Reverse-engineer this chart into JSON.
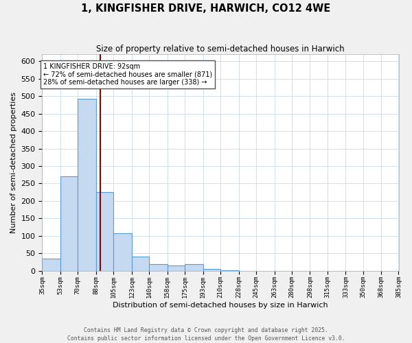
{
  "title": "1, KINGFISHER DRIVE, HARWICH, CO12 4WE",
  "subtitle": "Size of property relative to semi-detached houses in Harwich",
  "xlabel": "Distribution of semi-detached houses by size in Harwich",
  "ylabel": "Number of semi-detached properties",
  "bin_labels": [
    "35sqm",
    "53sqm",
    "70sqm",
    "88sqm",
    "105sqm",
    "123sqm",
    "140sqm",
    "158sqm",
    "175sqm",
    "193sqm",
    "210sqm",
    "228sqm",
    "245sqm",
    "263sqm",
    "280sqm",
    "298sqm",
    "315sqm",
    "333sqm",
    "350sqm",
    "368sqm",
    "385sqm"
  ],
  "bin_edges": [
    35,
    53,
    70,
    88,
    105,
    123,
    140,
    158,
    175,
    193,
    210,
    228,
    245,
    263,
    280,
    298,
    315,
    333,
    350,
    368,
    385
  ],
  "bar_values": [
    35,
    270,
    493,
    225,
    108,
    40,
    18,
    15,
    18,
    5,
    2,
    0,
    0,
    0,
    0,
    0,
    0,
    0,
    0,
    0
  ],
  "bar_color": "#c5d9f0",
  "bar_edge_color": "#5b9bd5",
  "property_size": 92,
  "vline_color": "#8b0000",
  "annotation_title": "1 KINGFISHER DRIVE: 92sqm",
  "annotation_line1": "← 72% of semi-detached houses are smaller (871)",
  "annotation_line2": "28% of semi-detached houses are larger (338) →",
  "annotation_box_color": "#ffffff",
  "annotation_box_edge": "#555555",
  "footer_line1": "Contains HM Land Registry data © Crown copyright and database right 2025.",
  "footer_line2": "Contains public sector information licensed under the Open Government Licence v3.0.",
  "ylim": [
    0,
    620
  ],
  "yticks": [
    0,
    50,
    100,
    150,
    200,
    250,
    300,
    350,
    400,
    450,
    500,
    550,
    600
  ],
  "background_color": "#f0f0f0",
  "plot_background": "#ffffff",
  "grid_color": "#c8daea"
}
